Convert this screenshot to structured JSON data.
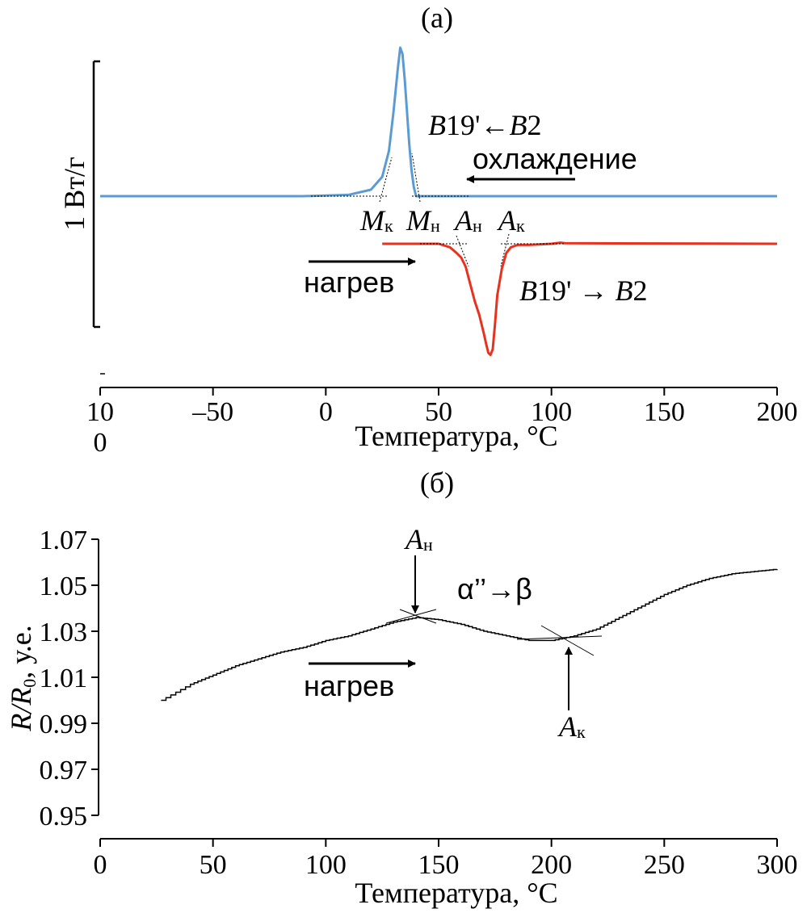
{
  "chart_data": [
    {
      "type": "line",
      "panel_label": "(a)",
      "xlabel": "Температура, °C",
      "ylabel": "1 Вт/г",
      "xlim": [
        -100,
        200
      ],
      "x_ticks": [
        -100,
        -50,
        0,
        50,
        100,
        150,
        200
      ],
      "x_tick_labels": [
        "10\n0",
        "–50",
        "0",
        "50",
        "100",
        "150",
        "200"
      ],
      "grid": false,
      "colors": {
        "cooling": "#5b9bd5",
        "heating": "#e8321e"
      },
      "series": [
        {
          "key": "cooling",
          "x": [
            -100,
            -10,
            10,
            20,
            25,
            28,
            30,
            32,
            33,
            34,
            35,
            36,
            37,
            38,
            39,
            40,
            200
          ],
          "y": [
            0,
            0,
            0.01,
            0.05,
            0.15,
            0.35,
            0.65,
            1.0,
            1.15,
            1.1,
            0.9,
            0.65,
            0.4,
            0.2,
            0.07,
            0,
            0
          ]
        },
        {
          "key": "heating",
          "x": [
            25,
            50,
            55,
            58,
            60,
            62,
            64,
            66,
            68,
            70,
            71,
            72,
            73,
            74,
            75,
            76,
            78,
            80,
            82,
            85,
            90,
            100,
            104,
            106,
            200
          ],
          "y": [
            0,
            0,
            -0.03,
            -0.08,
            -0.12,
            -0.2,
            -0.35,
            -0.5,
            -0.62,
            -0.78,
            -0.87,
            -0.95,
            -0.97,
            -0.92,
            -0.7,
            -0.45,
            -0.22,
            -0.08,
            -0.03,
            -0.01,
            -0.01,
            0,
            0.01,
            0.005,
            0
          ]
        }
      ],
      "annotations": {
        "transform_cool_italic": "B",
        "transform_cool_a": "19'←",
        "transform_cool_b_italic": "B",
        "transform_cool_c": "2",
        "cooling_label": "охлаждение",
        "heating_label": "нагрев",
        "transform_heat_italic": "B",
        "transform_heat_a": "19' → ",
        "transform_heat_b_italic": "B",
        "transform_heat_c": "2",
        "Mk_main": "M",
        "Mk_sub": "к",
        "Mn_main": "M",
        "Mn_sub": "н",
        "An_main": "A",
        "An_sub": "н",
        "Ak_main": "A",
        "Ak_sub": "к"
      },
      "markers": {
        "Mk": 27,
        "Mn": 39,
        "An": 60,
        "Ak": 80
      }
    },
    {
      "type": "line",
      "panel_label": "(б)",
      "xlabel": "Температура, °C",
      "ylabel_main_a": "R/R",
      "ylabel_sub": "0",
      "ylabel_main_b": ", у.е.",
      "xlim": [
        0,
        300
      ],
      "ylim": [
        0.95,
        1.07
      ],
      "x_ticks": [
        0,
        50,
        100,
        150,
        200,
        250,
        300
      ],
      "y_ticks": [
        0.95,
        0.97,
        0.99,
        1.01,
        1.03,
        1.05,
        1.07
      ],
      "y_tick_labels": [
        "0.95",
        "0.97",
        "0.99",
        "1.01",
        "1.03",
        "1.05",
        "1.07"
      ],
      "grid": false,
      "series": [
        {
          "key": "resistance",
          "x": [
            27,
            40,
            50,
            60,
            70,
            80,
            90,
            100,
            110,
            120,
            130,
            140,
            150,
            160,
            170,
            180,
            190,
            200,
            210,
            220,
            230,
            240,
            250,
            260,
            270,
            280,
            290,
            300
          ],
          "y": [
            1.0,
            1.007,
            1.011,
            1.015,
            1.018,
            1.021,
            1.023,
            1.026,
            1.028,
            1.031,
            1.034,
            1.036,
            1.035,
            1.033,
            1.03,
            1.028,
            1.026,
            1.026,
            1.028,
            1.031,
            1.036,
            1.041,
            1.046,
            1.05,
            1.053,
            1.055,
            1.056,
            1.057
          ]
        }
      ],
      "annotations": {
        "transform": "α’’→β",
        "heating_label": "нагрев",
        "An_main": "A",
        "An_sub": "н",
        "Ak_main": "A",
        "Ak_sub": "к"
      },
      "markers": {
        "An": 139,
        "Ak": 206
      }
    }
  ]
}
